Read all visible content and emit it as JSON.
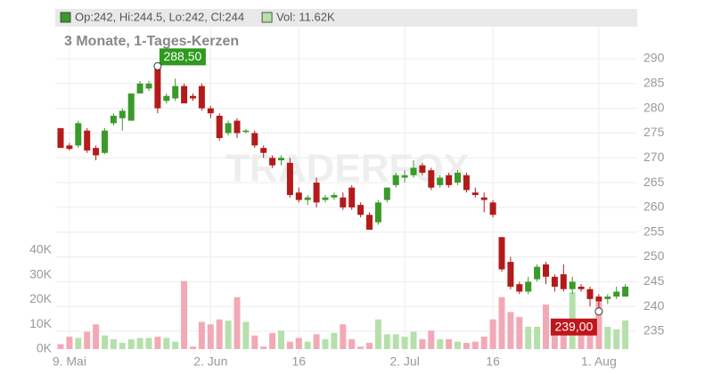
{
  "chart_data": {
    "type": "candlestick",
    "subtitle": "3 Monate, 1-Tages-Kerzen",
    "watermark": "TRADERFOX",
    "legend": [
      {
        "text": "Op:242, Hi:244.5, Lo:242, Cl:244",
        "color": "#3a9a2a"
      },
      {
        "text": "Vol: 11.62K",
        "color": "#b5e0ab"
      }
    ],
    "up_color": "#3a9a2a",
    "down_color": "#b31b1b",
    "volume_up_color": "#b5e0ab",
    "volume_down_color": "#f2a9b6",
    "open": [
      276,
      272.5,
      272.5,
      275.5,
      272,
      271,
      277,
      278,
      277.5,
      283,
      284,
      288,
      281.5,
      282,
      284.5,
      282.5,
      284.5,
      280,
      278.5,
      275,
      277.5,
      275.2,
      275,
      272,
      270,
      269.5,
      269,
      263,
      261.5,
      265,
      261.5,
      262,
      262,
      264,
      260.5,
      258.5,
      257,
      261.5,
      264.5,
      266,
      266.5,
      268.5,
      267.5,
      264.5,
      266.5,
      265,
      266.5,
      263,
      262,
      261,
      254,
      249,
      244.5,
      243,
      245.5,
      248.5,
      246,
      246.5,
      243.5,
      244,
      243.5,
      242,
      241.5,
      242,
      242
    ],
    "high": [
      276,
      273,
      277.5,
      276,
      272.5,
      276,
      279,
      280,
      283,
      285.5,
      285.5,
      288.5,
      283,
      286,
      285,
      283,
      285,
      280.5,
      279,
      277.5,
      278,
      275.8,
      275.5,
      272.5,
      270.5,
      270.5,
      270,
      264,
      262.5,
      266,
      262.5,
      263,
      263,
      264.5,
      261,
      259,
      261.5,
      264,
      267,
      267.5,
      269.5,
      269,
      268,
      266.5,
      267,
      267.5,
      267,
      264,
      263,
      261.5,
      254,
      250,
      245,
      246,
      248.5,
      249,
      246.5,
      248.5,
      246,
      244.5,
      244,
      242.5,
      242.5,
      244,
      244.5
    ],
    "low": [
      272,
      271.5,
      272,
      271,
      269.5,
      270.8,
      276.5,
      275.5,
      277.5,
      283,
      283.5,
      279,
      281,
      281.5,
      281,
      281.5,
      279.5,
      278,
      273.5,
      274.5,
      274,
      275,
      272,
      270,
      268,
      268.5,
      262,
      261,
      260.5,
      260,
      261,
      261.5,
      259.5,
      259.5,
      258,
      255.5,
      256.5,
      261,
      264,
      265,
      266,
      266.5,
      263.5,
      264,
      264,
      264.5,
      263,
      262,
      259,
      258,
      247,
      243.5,
      242.5,
      242.5,
      245,
      244.5,
      243,
      243,
      242.5,
      243,
      240,
      239,
      240.5,
      241.5,
      242
    ],
    "close": [
      272,
      271.8,
      277,
      271.5,
      270.5,
      275.5,
      278.5,
      279.5,
      283,
      285,
      285,
      280,
      282.5,
      284.5,
      281,
      282,
      280,
      279,
      274,
      277,
      275,
      275.5,
      272.5,
      271,
      268.5,
      270,
      262.5,
      261.5,
      262,
      261,
      262,
      262.5,
      260,
      260,
      258.5,
      255.5,
      261,
      264,
      266.5,
      266.5,
      268,
      267,
      264,
      266,
      264.5,
      267,
      263.5,
      262.5,
      261.5,
      258.5,
      247.5,
      244,
      243,
      245,
      248,
      246,
      244,
      243.5,
      245,
      243.5,
      241.5,
      241,
      242,
      243,
      244
    ],
    "volume": [
      2,
      5,
      4.5,
      7,
      10,
      5.5,
      4,
      2.5,
      4,
      4.5,
      4.5,
      5,
      4.5,
      3,
      27.5,
      1,
      11,
      10,
      12,
      11.5,
      21,
      11,
      5.5,
      1,
      6.5,
      7.5,
      3,
      4.5,
      3,
      6,
      4,
      6.5,
      10,
      4,
      1,
      2.5,
      12,
      6,
      6,
      5,
      7,
      4,
      7.5,
      4,
      4,
      3,
      2.5,
      3,
      5,
      12,
      21,
      15,
      13,
      9,
      9,
      18,
      12,
      10,
      23,
      5.5,
      10,
      19,
      9,
      8,
      11.62
    ],
    "annotations": [
      {
        "text": "288,50",
        "value": 288.5,
        "color": "#2e9a1e"
      },
      {
        "text": "239,00",
        "value": 239,
        "color": "#c0151a"
      }
    ],
    "xticks": [
      {
        "value": 1,
        "label": "9. Mai"
      },
      {
        "value": 17,
        "label": "2. Jun"
      },
      {
        "value": 27,
        "label": "16"
      },
      {
        "value": 39,
        "label": "2. Jul"
      },
      {
        "value": 49,
        "label": "16"
      },
      {
        "value": 61,
        "label": "1. Aug"
      }
    ],
    "ylim": [
      235,
      290
    ],
    "yticks": [
      235,
      240,
      245,
      250,
      255,
      260,
      265,
      270,
      275,
      280,
      285,
      290
    ],
    "y2lim": [
      0,
      40
    ],
    "y2ticks": [
      {
        "value": 0,
        "label": "0K"
      },
      {
        "value": 10,
        "label": "10K"
      },
      {
        "value": 20,
        "label": "20K"
      },
      {
        "value": 30,
        "label": "30K"
      },
      {
        "value": 40,
        "label": "40K"
      }
    ],
    "grid": true
  }
}
